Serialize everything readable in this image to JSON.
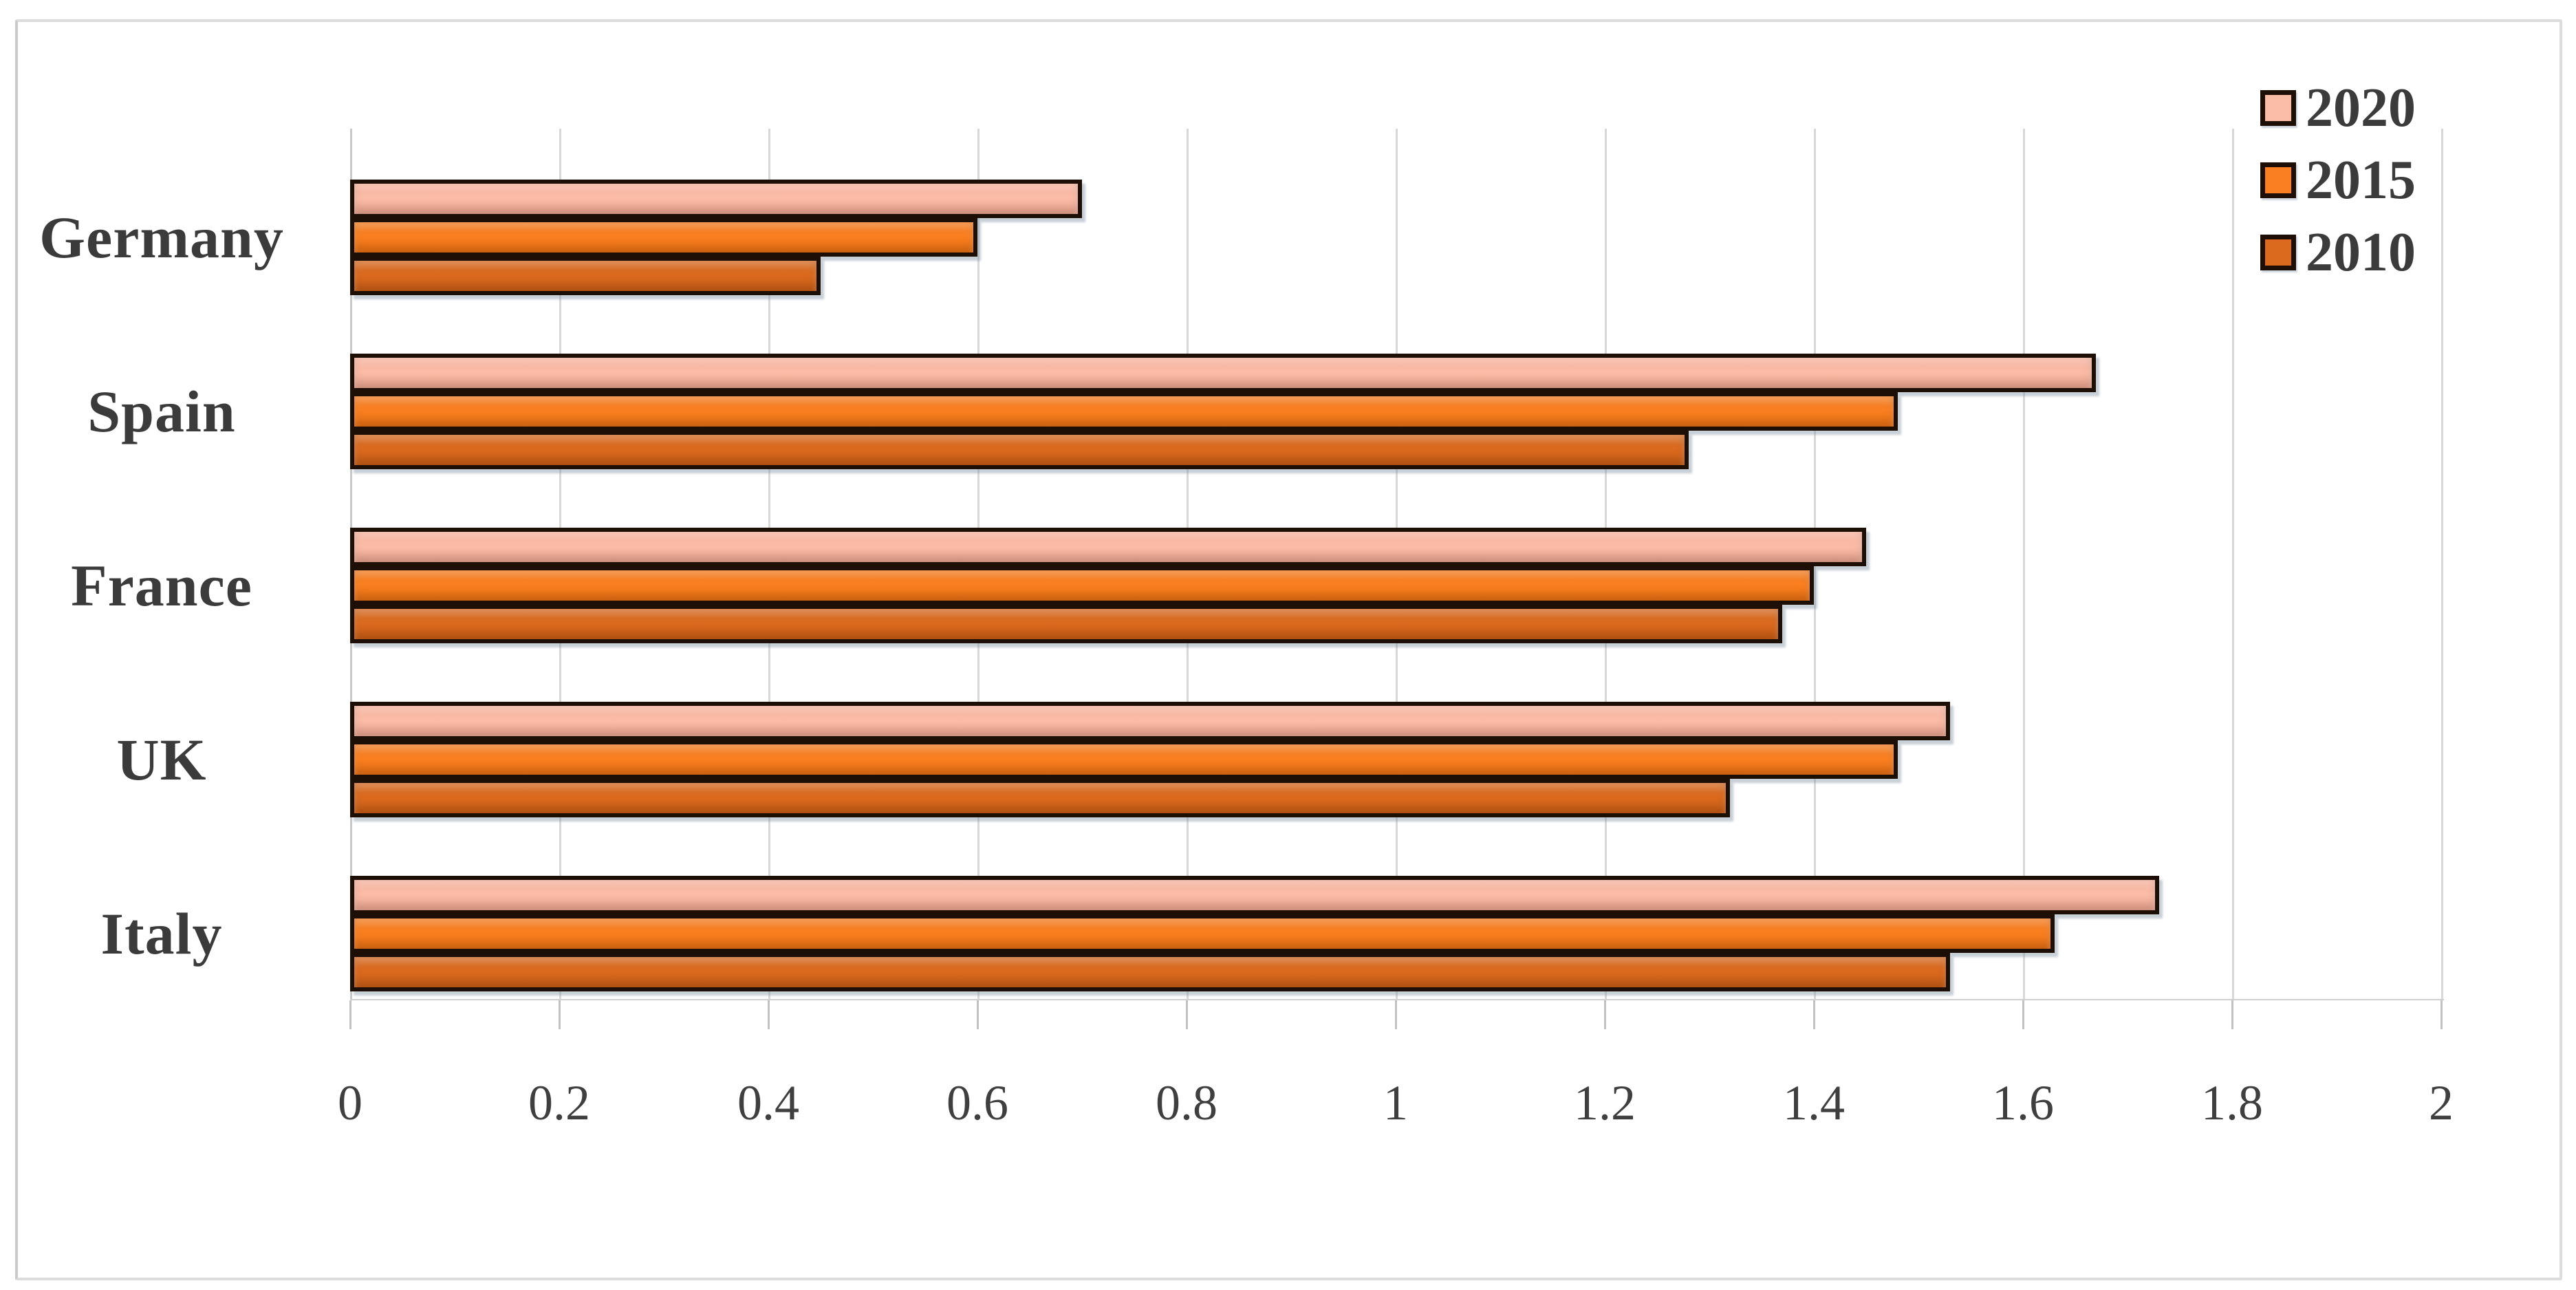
{
  "chart_data": {
    "type": "bar",
    "orientation": "horizontal",
    "title": "",
    "xlabel": "",
    "ylabel": "",
    "categories": [
      "Germany",
      "Spain",
      "France",
      "UK",
      "Italy"
    ],
    "series": [
      {
        "name": "2020",
        "color": "#fbbca7",
        "color_dark": "#f3ab94",
        "values": [
          0.7,
          1.67,
          1.45,
          1.53,
          1.73
        ]
      },
      {
        "name": "2015",
        "color": "#fa7f20",
        "color_dark": "#ef7314",
        "values": [
          0.6,
          1.48,
          1.4,
          1.48,
          1.63
        ]
      },
      {
        "name": "2010",
        "color": "#db6a1e",
        "color_dark": "#cf6016",
        "values": [
          0.45,
          1.28,
          1.37,
          1.32,
          1.53
        ]
      }
    ],
    "xlim": [
      0,
      2
    ],
    "x_ticks": [
      0,
      0.2,
      0.4,
      0.6,
      0.8,
      1.0,
      1.2,
      1.4,
      1.6,
      1.8,
      2.0
    ],
    "x_tick_labels": [
      "0",
      "0.2",
      "0.4",
      "0.6",
      "0.8",
      "1",
      "1.2",
      "1.4",
      "1.6",
      "1.8",
      "2"
    ],
    "grid": "vertical",
    "legend_position": "top-right",
    "legend_items": [
      "2020",
      "2015",
      "2010"
    ]
  },
  "colors": {
    "bar_border": "#1d0f05",
    "gridline": "#d8d8d8",
    "tick": "#c2c2c2",
    "label_text": "#3b3b3b",
    "background": "#ffffff",
    "frame_border": "#dcdcdc"
  }
}
